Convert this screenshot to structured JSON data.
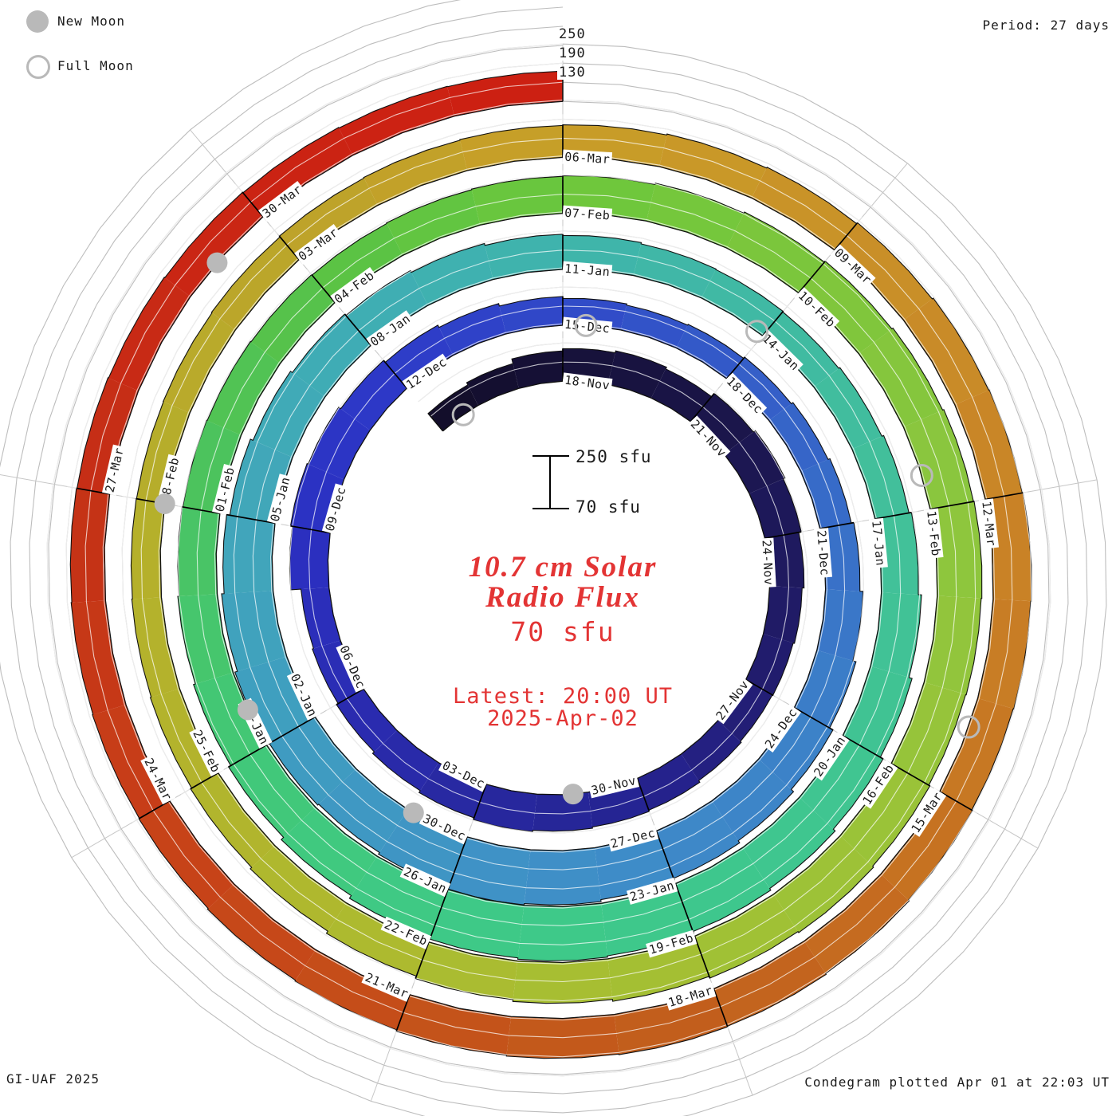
{
  "colors": {
    "accent_red": "#e33434",
    "moon_gray": "#b9b9b9",
    "grid_gray": "#bdbdbd",
    "text_black": "#1b1b1b",
    "bar_outline": "#111111"
  },
  "legend": {
    "new_moon_label": "New Moon",
    "full_moon_label": "Full Moon"
  },
  "period_label": "Period: 27 days",
  "footer": {
    "credit": "GI-UAF 2025",
    "plotted": "Condegram plotted Apr 01 at 22:03 UT"
  },
  "center": {
    "title_line1": "10.7 cm Solar",
    "title_line2": "Radio Flux",
    "unit_label": "70 sfu",
    "latest_line1": "Latest: 20:00 UT",
    "latest_line2": "2025-Apr-02"
  },
  "scale_bar": {
    "top_label": "250 sfu",
    "bottom_label": "70 sfu"
  },
  "radial_axis_labels": {
    "t250": "250",
    "t190": "190",
    "t130": "130"
  },
  "chart_data": {
    "type": "bar",
    "subtype": "polar-spiral-condegram",
    "title": "10.7 cm Solar Radio Flux",
    "units": "sfu",
    "days_per_revolution": 27,
    "flux_axis": {
      "min": 70,
      "gridlines": [
        130,
        190,
        250
      ],
      "max": 250
    },
    "start_date": "2024-11-15",
    "end_date": "2025-04-01",
    "values": [
      142,
      150,
      165,
      172,
      178,
      172,
      185,
      192,
      186,
      178,
      172,
      168,
      166,
      170,
      176,
      180,
      184,
      188,
      182,
      175,
      168,
      162,
      158,
      190,
      196,
      192,
      184,
      176,
      168,
      160,
      154,
      150,
      153,
      158,
      164,
      170,
      178,
      188,
      198,
      210,
      220,
      228,
      234,
      240,
      244,
      238,
      232,
      236,
      240,
      232,
      224,
      214,
      205,
      198,
      192,
      186,
      180,
      176,
      172,
      170,
      168,
      172,
      178,
      186,
      196,
      206,
      216,
      224,
      230,
      236,
      240,
      236,
      228,
      218,
      208,
      200,
      194,
      190,
      188,
      186,
      184,
      182,
      184,
      186,
      188,
      192,
      196,
      200,
      204,
      208,
      210,
      208,
      206,
      210,
      214,
      210,
      204,
      198,
      192,
      184,
      176,
      170,
      166,
      163,
      161,
      160,
      161,
      163,
      166,
      168,
      170,
      172,
      175,
      178,
      182,
      186,
      188,
      190,
      188,
      186,
      189,
      192,
      195,
      197,
      195,
      192,
      188,
      185,
      182,
      180,
      178,
      176,
      174,
      172,
      170,
      168,
      166,
      165
    ],
    "date_labels": [
      [
        3,
        "18-Nov"
      ],
      [
        6,
        "21-Nov"
      ],
      [
        9,
        "24-Nov"
      ],
      [
        12,
        "27-Nov"
      ],
      [
        15,
        "30-Nov"
      ],
      [
        18,
        "03-Dec"
      ],
      [
        21,
        "06-Dec"
      ],
      [
        24,
        "09-Dec"
      ],
      [
        27,
        "12-Dec"
      ],
      [
        30,
        "15-Dec"
      ],
      [
        33,
        "18-Dec"
      ],
      [
        36,
        "21-Dec"
      ],
      [
        39,
        "24-Dec"
      ],
      [
        42,
        "27-Dec"
      ],
      [
        45,
        "30-Dec"
      ],
      [
        48,
        "02-Jan"
      ],
      [
        51,
        "05-Jan"
      ],
      [
        54,
        "08-Jan"
      ],
      [
        57,
        "11-Jan"
      ],
      [
        60,
        "14-Jan"
      ],
      [
        63,
        "17-Jan"
      ],
      [
        66,
        "20-Jan"
      ],
      [
        69,
        "23-Jan"
      ],
      [
        72,
        "26-Jan"
      ],
      [
        75,
        "29-Jan"
      ],
      [
        78,
        "01-Feb"
      ],
      [
        81,
        "04-Feb"
      ],
      [
        84,
        "07-Feb"
      ],
      [
        87,
        "10-Feb"
      ],
      [
        90,
        "13-Feb"
      ],
      [
        93,
        "16-Feb"
      ],
      [
        96,
        "19-Feb"
      ],
      [
        99,
        "22-Feb"
      ],
      [
        102,
        "25-Feb"
      ],
      [
        105,
        "28-Feb"
      ],
      [
        108,
        "03-Mar"
      ],
      [
        111,
        "06-Mar"
      ],
      [
        114,
        "09-Mar"
      ],
      [
        117,
        "12-Mar"
      ],
      [
        120,
        "15-Mar"
      ],
      [
        123,
        "18-Mar"
      ],
      [
        126,
        "21-Mar"
      ],
      [
        129,
        "24-Mar"
      ],
      [
        132,
        "27-Mar"
      ],
      [
        135,
        "30-Mar"
      ]
    ],
    "moons": {
      "new_moons": [
        {
          "date": "2024-12-01",
          "d": 16.3
        },
        {
          "date": "2024-12-30",
          "d": 45.9
        },
        {
          "date": "2025-01-29",
          "d": 75.5
        },
        {
          "date": "2025-02-28",
          "d": 105.0
        },
        {
          "date": "2025-03-29",
          "d": 134.4
        }
      ],
      "full_moons": [
        {
          "date": "2024-11-15",
          "d": 0.6
        },
        {
          "date": "2024-12-15",
          "d": 30.4
        },
        {
          "date": "2025-01-13",
          "d": 59.9
        },
        {
          "date": "2025-02-12",
          "d": 89.6
        },
        {
          "date": "2025-03-14",
          "d": 119.3
        }
      ]
    },
    "color_anchors": [
      [
        0,
        "#120d28"
      ],
      [
        6,
        "#1a1548"
      ],
      [
        12,
        "#221d70"
      ],
      [
        15,
        "#252391"
      ],
      [
        18,
        "#27289f"
      ],
      [
        21,
        "#2a2cb2"
      ],
      [
        24,
        "#2b30c2"
      ],
      [
        27,
        "#2d3ac8"
      ],
      [
        30,
        "#3049c8"
      ],
      [
        33,
        "#345cc8"
      ],
      [
        36,
        "#386ec8"
      ],
      [
        39,
        "#3c80c8"
      ],
      [
        42,
        "#3e8ac8"
      ],
      [
        45,
        "#3f93c5"
      ],
      [
        48,
        "#3f9dc0"
      ],
      [
        51,
        "#41a6ba"
      ],
      [
        54,
        "#3fadb4"
      ],
      [
        57,
        "#3fb4ac"
      ],
      [
        60,
        "#40baa2"
      ],
      [
        63,
        "#42c09a"
      ],
      [
        66,
        "#40c492"
      ],
      [
        69,
        "#3ec88c"
      ],
      [
        72,
        "#3ec986"
      ],
      [
        75,
        "#41c878"
      ],
      [
        78,
        "#4ac362"
      ],
      [
        81,
        "#58c246"
      ],
      [
        84,
        "#6cc73c"
      ],
      [
        87,
        "#7ec63c"
      ],
      [
        90,
        "#8cc63e"
      ],
      [
        93,
        "#98c439"
      ],
      [
        96,
        "#a2c034"
      ],
      [
        99,
        "#acbb30"
      ],
      [
        102,
        "#b2b42c"
      ],
      [
        105,
        "#b5af2b"
      ],
      [
        108,
        "#bca42a"
      ],
      [
        111,
        "#c89e28"
      ],
      [
        114,
        "#c99128"
      ],
      [
        117,
        "#c98427"
      ],
      [
        120,
        "#c77522"
      ],
      [
        123,
        "#c2611d"
      ],
      [
        126,
        "#c45019"
      ],
      [
        129,
        "#c74018"
      ],
      [
        132,
        "#c53016"
      ],
      [
        135,
        "#cb2413"
      ],
      [
        138,
        "#cc1f12"
      ]
    ],
    "legend_position": "top-left",
    "grid": true
  }
}
